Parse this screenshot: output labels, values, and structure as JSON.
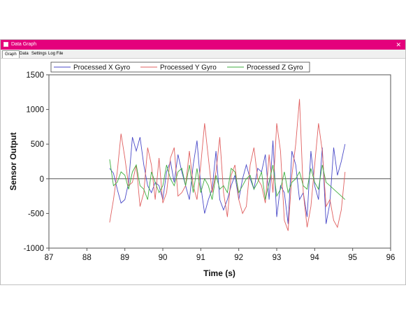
{
  "window": {
    "title": "Data Graph",
    "close_glyph": "✕"
  },
  "tabs": [
    {
      "label": "Graph",
      "active": true
    },
    {
      "label": "Data",
      "active": false
    },
    {
      "label": "Settings",
      "active": false
    },
    {
      "label": "Log File",
      "active": false
    }
  ],
  "chart_data": {
    "type": "line",
    "title": "",
    "xlabel": "Time (s)",
    "ylabel": "Sensor Output",
    "xlim": [
      87,
      96
    ],
    "ylim": [
      -1000,
      1500
    ],
    "xticks": [
      87,
      88,
      89,
      90,
      91,
      92,
      93,
      94,
      95,
      96
    ],
    "yticks": [
      -1000,
      -500,
      0,
      500,
      1000,
      1500
    ],
    "grid": false,
    "legend_position": "top",
    "zero_line": true,
    "series": [
      {
        "name": "Processed X Gyro",
        "color": "#4a4ac8",
        "x": [
          88.6,
          88.7,
          88.8,
          88.9,
          89.0,
          89.1,
          89.2,
          89.3,
          89.4,
          89.5,
          89.6,
          89.7,
          89.8,
          89.9,
          90.0,
          90.1,
          90.2,
          90.3,
          90.4,
          90.5,
          90.6,
          90.7,
          90.8,
          90.9,
          91.0,
          91.1,
          91.2,
          91.3,
          91.4,
          91.5,
          91.6,
          91.7,
          91.8,
          91.9,
          92.0,
          92.1,
          92.2,
          92.3,
          92.4,
          92.5,
          92.6,
          92.7,
          92.8,
          92.9,
          93.0,
          93.1,
          93.2,
          93.3,
          93.4,
          93.5,
          93.6,
          93.7,
          93.8,
          93.9,
          94.0,
          94.1,
          94.2,
          94.3,
          94.4,
          94.5,
          94.6,
          94.7,
          94.8
        ],
        "values": [
          150,
          80,
          -150,
          -350,
          -300,
          -50,
          600,
          400,
          600,
          200,
          -100,
          -200,
          -50,
          -100,
          -300,
          100,
          250,
          -50,
          350,
          100,
          -100,
          -300,
          200,
          550,
          -100,
          -500,
          -300,
          -150,
          400,
          -300,
          -450,
          -300,
          -100,
          50,
          -300,
          0,
          200,
          0,
          -150,
          150,
          100,
          350,
          -300,
          550,
          -550,
          -100,
          -200,
          -650,
          400,
          200,
          -300,
          -200,
          -550,
          400,
          -100,
          -300,
          450,
          -650,
          -350,
          450,
          50,
          250,
          500
        ]
      },
      {
        "name": "Processed Y Gyro",
        "color": "#e06060",
        "x": [
          88.6,
          88.7,
          88.8,
          88.9,
          89.0,
          89.1,
          89.2,
          89.3,
          89.4,
          89.5,
          89.6,
          89.7,
          89.8,
          89.9,
          90.0,
          90.1,
          90.2,
          90.3,
          90.4,
          90.5,
          90.6,
          90.7,
          90.8,
          90.9,
          91.0,
          91.1,
          91.2,
          91.3,
          91.4,
          91.5,
          91.6,
          91.7,
          91.8,
          91.9,
          92.0,
          92.1,
          92.2,
          92.3,
          92.4,
          92.5,
          92.6,
          92.7,
          92.8,
          92.9,
          93.0,
          93.1,
          93.2,
          93.3,
          93.4,
          93.5,
          93.6,
          93.7,
          93.8,
          93.9,
          94.0,
          94.1,
          94.2,
          94.3,
          94.4,
          94.5,
          94.6,
          94.7,
          94.8
        ],
        "values": [
          -630,
          -300,
          100,
          650,
          300,
          -100,
          -50,
          200,
          -400,
          -200,
          450,
          200,
          -300,
          300,
          -350,
          -200,
          300,
          450,
          -250,
          -200,
          -100,
          400,
          -100,
          -300,
          200,
          800,
          300,
          -200,
          100,
          600,
          -200,
          -550,
          50,
          200,
          -300,
          -500,
          -400,
          200,
          450,
          0,
          -100,
          -350,
          350,
          -200,
          800,
          400,
          -600,
          -750,
          50,
          500,
          1150,
          -200,
          -700,
          -400,
          200,
          800,
          400,
          -400,
          -300,
          -600,
          -700,
          -450,
          100
        ]
      },
      {
        "name": "Processed Z Gyro",
        "color": "#3fae3f",
        "x": [
          88.6,
          88.7,
          88.8,
          88.9,
          89.0,
          89.1,
          89.2,
          89.3,
          89.4,
          89.5,
          89.6,
          89.7,
          89.8,
          89.9,
          90.0,
          90.1,
          90.2,
          90.3,
          90.4,
          90.5,
          90.6,
          90.7,
          90.8,
          90.9,
          91.0,
          91.1,
          91.2,
          91.3,
          91.4,
          91.5,
          91.6,
          91.7,
          91.8,
          91.9,
          92.0,
          92.1,
          92.2,
          92.3,
          92.4,
          92.5,
          92.6,
          92.7,
          92.8,
          92.9,
          93.0,
          93.1,
          93.2,
          93.3,
          93.4,
          93.5,
          93.6,
          93.7,
          93.8,
          93.9,
          94.0,
          94.1,
          94.2,
          94.3,
          94.4,
          94.5,
          94.6,
          94.7,
          94.8
        ],
        "values": [
          280,
          -100,
          -50,
          100,
          50,
          -150,
          100,
          200,
          -100,
          -150,
          -300,
          100,
          -50,
          -200,
          -100,
          200,
          0,
          -100,
          100,
          150,
          -100,
          200,
          -200,
          150,
          -200,
          0,
          -100,
          -300,
          50,
          -150,
          -100,
          -200,
          150,
          100,
          -200,
          -100,
          0,
          50,
          -150,
          -50,
          100,
          -300,
          -50,
          200,
          -250,
          -150,
          100,
          -200,
          -50,
          0,
          100,
          -100,
          -150,
          150,
          -50,
          -150,
          200,
          -50,
          -100,
          -150,
          -200,
          -250,
          -300
        ]
      }
    ]
  }
}
